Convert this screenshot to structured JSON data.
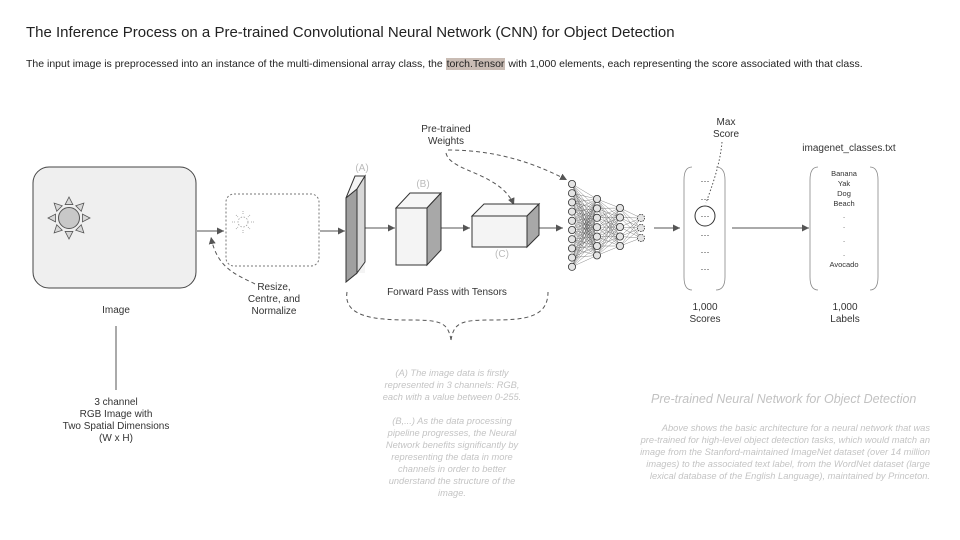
{
  "title": "The Inference Process on a Pre-trained Convolutional Neural Network (CNN) for Object Detection",
  "intro": {
    "before": "The input image is preprocessed into an instance of the multi-dimensional array class, the ",
    "highlight": "torch.Tensor",
    "after": " with 1,000 elements, each representing the score associated with that class."
  },
  "image_label": "Image",
  "image_desc": [
    "3 channel",
    "RGB Image with",
    "Two Spatial Dimensions",
    "(W x H)"
  ],
  "preprocess_label": [
    "Resize,",
    "Centre, and",
    "Normalize"
  ],
  "pretrained_weights": [
    "Pre-trained",
    "Weights"
  ],
  "stage_labels": [
    "(A)",
    "(B)",
    "(C)"
  ],
  "forward_pass": "Forward Pass with Tensors",
  "max_score": [
    "Max",
    "Score"
  ],
  "scores": {
    "dots": "…",
    "label": [
      "1,000",
      "Scores"
    ]
  },
  "classes": {
    "file": "imagenet_classes.txt",
    "items": [
      "Banana",
      "Yak",
      "Dog",
      "Beach"
    ],
    "vdots": ".",
    "last": "Avocado",
    "label": [
      "1,000",
      "Labels"
    ]
  },
  "notes": {
    "a": [
      "(A) The image data is firstly",
      "represented in 3 channels: RGB,",
      "each with a value between 0-255."
    ],
    "b": [
      "(B,...) As the data processing",
      "pipeline progresses, the Neural",
      "Network benefits significantly by",
      "representing the data in more",
      "channels in order to better",
      "understand the structure of the",
      "image."
    ]
  },
  "side_title": "Pre-trained Neural Network for Object Detection",
  "side_note": [
    "Above shows the basic architecture for a neural network that was",
    "pre-trained for high-level object detection tasks, which would match an",
    "image from the Stanford-maintained ImageNet dataset (over 14 million",
    "images) to the associated text label, from the WordNet dataset (large",
    "lexical database of the English Language), maintained by Princeton."
  ],
  "colors": {
    "line": "#555555",
    "box_fill": "#efefef",
    "face_fill": "#f4f4f4",
    "side_fill": "#a8a8a8",
    "highlight": "#c9bcb4",
    "muted_text": "#c4c4c4"
  }
}
